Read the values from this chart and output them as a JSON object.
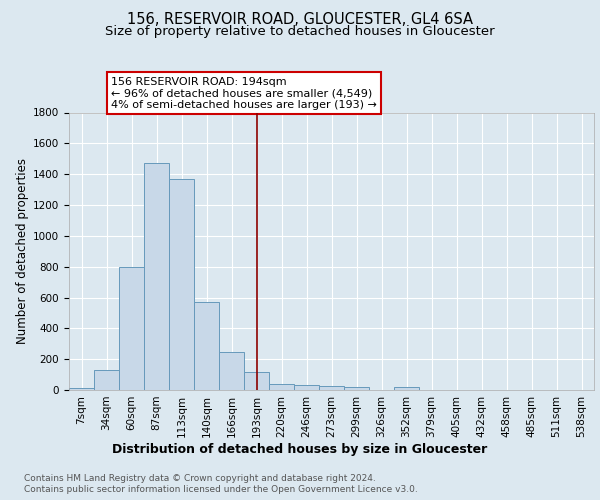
{
  "title": "156, RESERVOIR ROAD, GLOUCESTER, GL4 6SA",
  "subtitle": "Size of property relative to detached houses in Gloucester",
  "xlabel_bottom": "Distribution of detached houses by size in Gloucester",
  "ylabel": "Number of detached properties",
  "footnote1": "Contains HM Land Registry data © Crown copyright and database right 2024.",
  "footnote2": "Contains public sector information licensed under the Open Government Licence v3.0.",
  "bar_labels": [
    "7sqm",
    "34sqm",
    "60sqm",
    "87sqm",
    "113sqm",
    "140sqm",
    "166sqm",
    "193sqm",
    "220sqm",
    "246sqm",
    "273sqm",
    "299sqm",
    "326sqm",
    "352sqm",
    "379sqm",
    "405sqm",
    "432sqm",
    "458sqm",
    "485sqm",
    "511sqm",
    "538sqm"
  ],
  "bar_values": [
    15,
    130,
    795,
    1470,
    1370,
    570,
    245,
    115,
    40,
    30,
    25,
    20,
    0,
    20,
    0,
    0,
    0,
    0,
    0,
    0,
    0
  ],
  "bar_color": "#c8d8e8",
  "bar_edge_color": "#6699bb",
  "bar_width": 1.0,
  "vline_x": 7,
  "vline_color": "#8B0000",
  "ylim": [
    0,
    1800
  ],
  "yticks": [
    0,
    200,
    400,
    600,
    800,
    1000,
    1200,
    1400,
    1600,
    1800
  ],
  "annotation_text": "156 RESERVOIR ROAD: 194sqm\n← 96% of detached houses are smaller (4,549)\n4% of semi-detached houses are larger (193) →",
  "annotation_box_color": "#ffffff",
  "annotation_box_edge": "#cc0000",
  "fig_bg_color": "#dce8f0",
  "plot_bg_color": "#dce8f0",
  "grid_color": "#ffffff",
  "title_fontsize": 10.5,
  "subtitle_fontsize": 9.5,
  "tick_fontsize": 7.5,
  "ylabel_fontsize": 8.5,
  "annot_fontsize": 8.0,
  "xlabel_bottom_fontsize": 9.0,
  "footnote_fontsize": 6.5
}
